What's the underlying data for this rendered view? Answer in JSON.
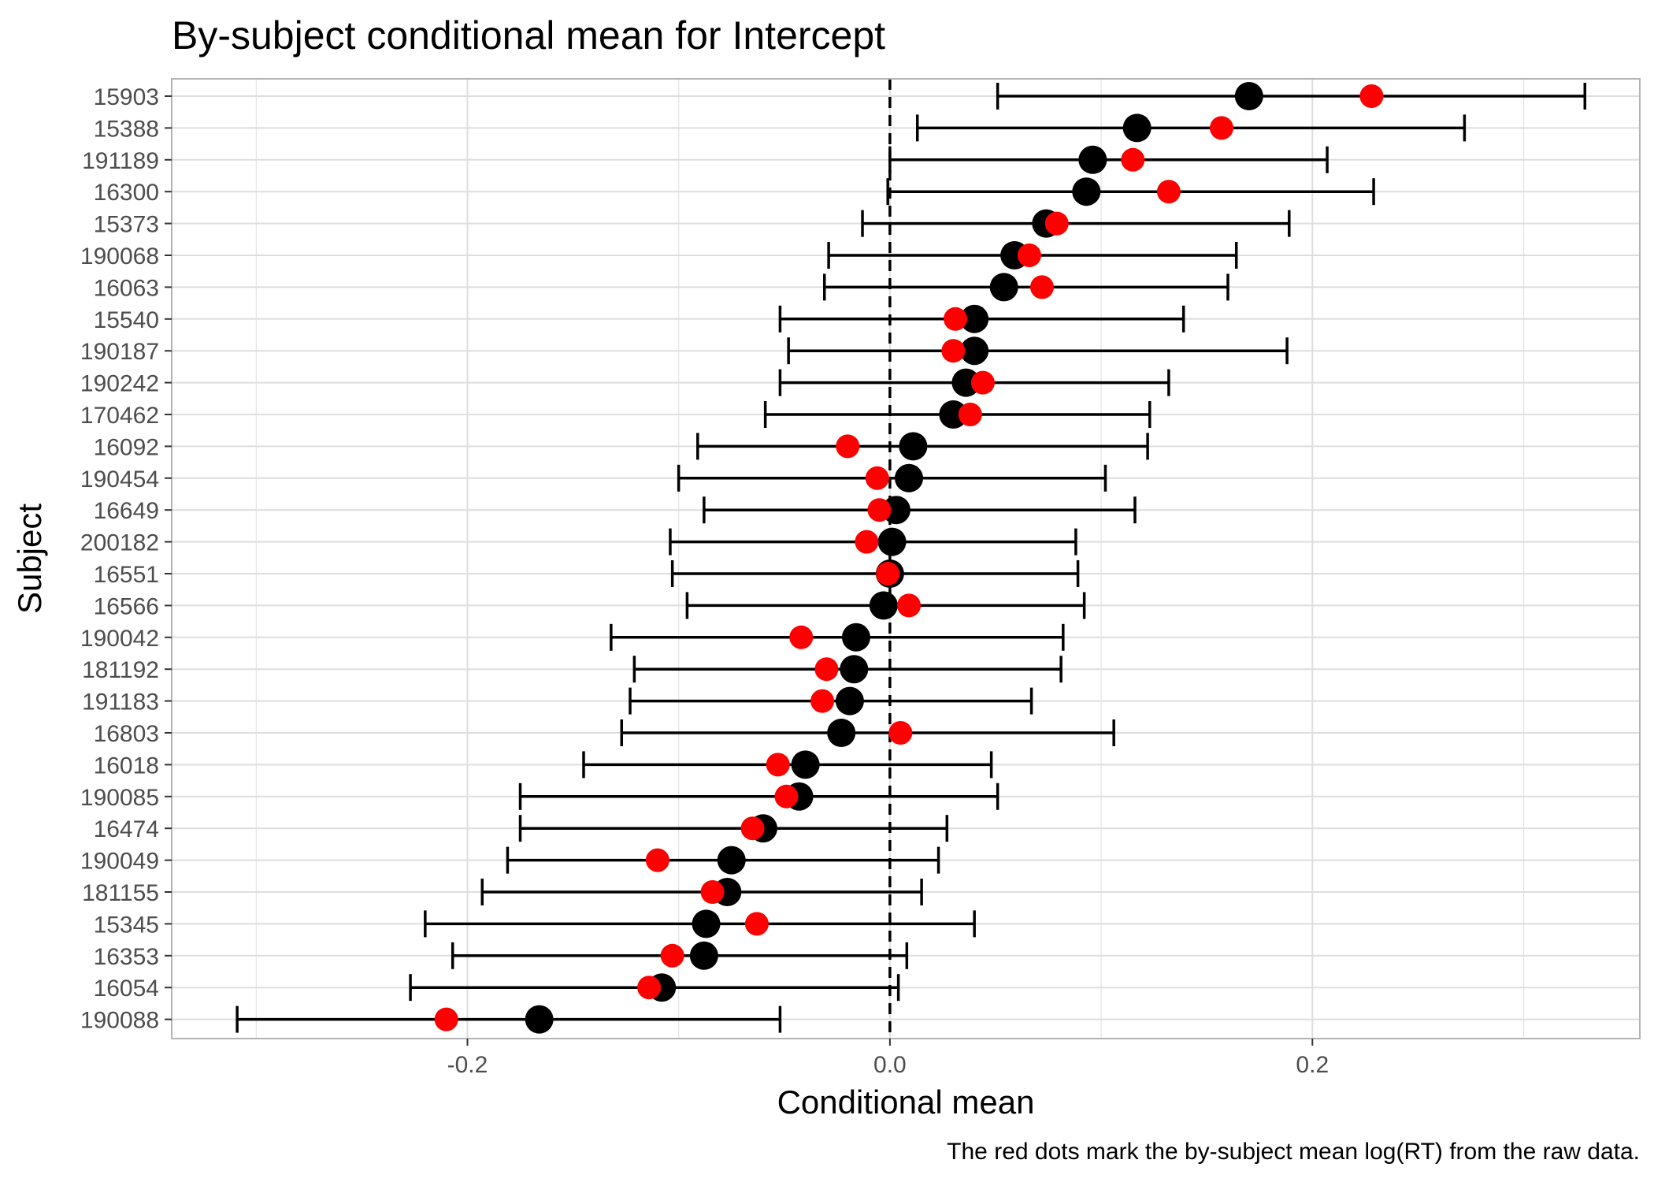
{
  "chart_data": {
    "type": "scatter",
    "title": "By-subject conditional mean for Intercept",
    "xlabel": "Conditional mean",
    "ylabel": "Subject",
    "caption": "The red dots mark the by-subject mean log(RT) from the raw data.",
    "xlim": [
      -0.34,
      0.355
    ],
    "x_ticks": [
      -0.2,
      0.0,
      0.2
    ],
    "x_tick_labels": [
      "-0.2",
      "0.0",
      "0.2"
    ],
    "grid": true,
    "reference_line": {
      "x": 0,
      "style": "dashed"
    },
    "colors": {
      "conditional_mean": "#000000",
      "raw_mean": "#ff0000",
      "grid": "#dedede",
      "panel_border": "#b3b3b3"
    },
    "subjects": [
      "15903",
      "15388",
      "191189",
      "16300",
      "15373",
      "190068",
      "16063",
      "15540",
      "190187",
      "190242",
      "170462",
      "16092",
      "190454",
      "16649",
      "200182",
      "16551",
      "16566",
      "190042",
      "181192",
      "191183",
      "16803",
      "16018",
      "190085",
      "16474",
      "190049",
      "181155",
      "15345",
      "16353",
      "16054",
      "190088"
    ],
    "series": [
      {
        "role": "conditional_mean",
        "values": [
          0.17,
          0.117,
          0.096,
          0.093,
          0.074,
          0.059,
          0.054,
          0.04,
          0.04,
          0.036,
          0.03,
          0.011,
          0.009,
          0.003,
          0.001,
          0.0,
          -0.003,
          -0.016,
          -0.017,
          -0.019,
          -0.023,
          -0.04,
          -0.043,
          -0.06,
          -0.075,
          -0.077,
          -0.087,
          -0.088,
          -0.108,
          -0.166
        ]
      },
      {
        "role": "interval_lower",
        "values": [
          0.051,
          0.013,
          0.0,
          -0.001,
          -0.013,
          -0.029,
          -0.031,
          -0.052,
          -0.048,
          -0.052,
          -0.059,
          -0.091,
          -0.1,
          -0.088,
          -0.104,
          -0.103,
          -0.096,
          -0.132,
          -0.121,
          -0.123,
          -0.127,
          -0.145,
          -0.175,
          -0.175,
          -0.181,
          -0.193,
          -0.22,
          -0.207,
          -0.227,
          -0.309
        ]
      },
      {
        "role": "interval_upper",
        "values": [
          0.329,
          0.272,
          0.207,
          0.229,
          0.189,
          0.164,
          0.16,
          0.139,
          0.188,
          0.132,
          0.123,
          0.122,
          0.102,
          0.116,
          0.088,
          0.089,
          0.092,
          0.082,
          0.081,
          0.067,
          0.106,
          0.048,
          0.051,
          0.027,
          0.023,
          0.015,
          0.04,
          0.008,
          0.004,
          -0.052
        ]
      },
      {
        "role": "raw_mean",
        "values": [
          0.228,
          0.157,
          0.115,
          0.132,
          0.079,
          0.066,
          0.072,
          0.031,
          0.03,
          0.044,
          0.038,
          -0.02,
          -0.006,
          -0.005,
          -0.011,
          -0.001,
          0.009,
          -0.042,
          -0.03,
          -0.032,
          0.005,
          -0.053,
          -0.049,
          -0.065,
          -0.11,
          -0.084,
          -0.063,
          -0.103,
          -0.114,
          -0.21
        ]
      }
    ]
  }
}
